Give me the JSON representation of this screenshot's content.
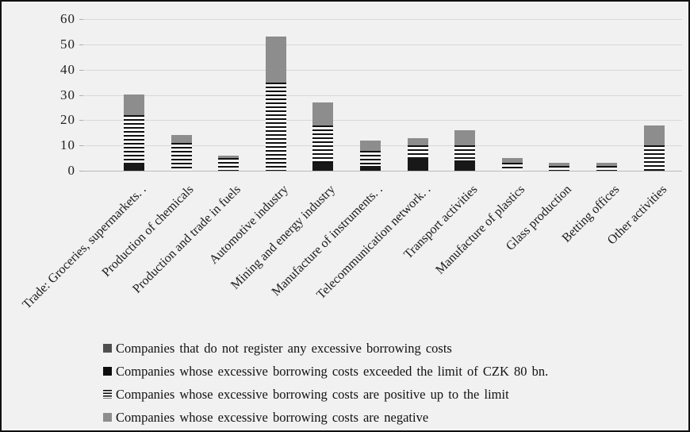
{
  "chart_data": {
    "type": "bar",
    "subtype": "stacked-vertical",
    "title": "",
    "xlabel": "",
    "ylabel": "",
    "ylim": [
      0,
      60
    ],
    "yticks": [
      0,
      10,
      20,
      30,
      40,
      50,
      60
    ],
    "grid": true,
    "legend_position": "bottom",
    "categories": [
      "Trade: Groceries, supermarkets. .",
      "Production of chemicals",
      "Production and trade in fuels",
      "Automotive industry",
      "Mining and energy industry",
      "Manufacture of instruments. .",
      "Telecommunication network. .",
      "Transport activities",
      "Manufacture of plastics",
      "Glass production",
      "Betting offices",
      "Other activities"
    ],
    "series": [
      {
        "name": "Companies that do not register any excessive borrowing costs",
        "style": "darkgray",
        "color": "#4f4f4f",
        "values": [
          0,
          0,
          0,
          0,
          0,
          0,
          0,
          0,
          0,
          0,
          0,
          0
        ]
      },
      {
        "name": "Companies whose excessive borrowing costs exceeded the limit of CZK 80 bn.",
        "style": "black",
        "color": "#181818",
        "values": [
          3,
          0,
          0,
          0,
          3,
          2,
          5,
          4,
          0,
          0,
          0,
          0
        ]
      },
      {
        "name": "Companies whose excessive borrowing costs are positive up to the limit",
        "style": "stripes",
        "color": "horizontal-black-stripes-on-white",
        "values": [
          19,
          11,
          5,
          35,
          15,
          6,
          5,
          6,
          3,
          2,
          2,
          10
        ]
      },
      {
        "name": "Companies whose excessive borrowing costs are negative",
        "style": "gray",
        "color": "#8d8d8d",
        "values": [
          8,
          3,
          1,
          18,
          9,
          4,
          3,
          6,
          2,
          1,
          1,
          8
        ]
      }
    ],
    "totals": [
      30,
      14,
      6,
      53,
      27,
      12,
      13,
      16,
      5,
      3,
      3,
      18
    ]
  },
  "colors": {
    "background": "#f1f1f1",
    "frame_border": "#111111",
    "gridline": "#d8d8d8",
    "axis_line": "#b9b9b9",
    "text": "#1a1a1a"
  }
}
